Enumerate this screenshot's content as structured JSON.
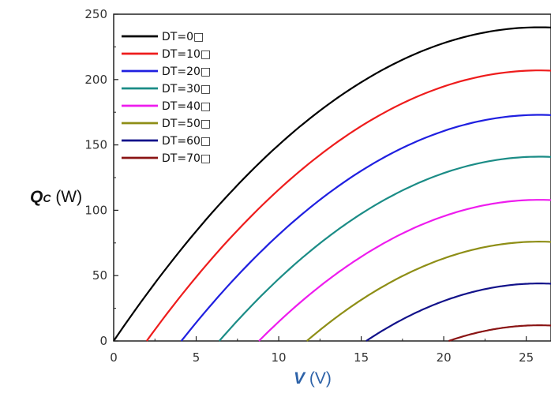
{
  "y_label": {
    "symbol": "Q",
    "subscript": "C",
    "unit": "(W)"
  },
  "x_label": {
    "symbol": "V",
    "unit": "(V)"
  },
  "chart_data": {
    "type": "line",
    "title": "",
    "xlabel": "V (V)",
    "ylabel": "Qc (W)",
    "xlim": [
      0,
      26.5
    ],
    "ylim": [
      0,
      250
    ],
    "xticks": [
      "0",
      "5",
      "10",
      "15",
      "20",
      "25"
    ],
    "yticks": [
      "0",
      "50",
      "100",
      "150",
      "200",
      "250"
    ],
    "grid": false,
    "legend_position": "top-left",
    "series": [
      {
        "name": "DT=0□",
        "color": "#000000",
        "v0": 0.0,
        "vmax": 25.8,
        "qmax": 240
      },
      {
        "name": "DT=10□",
        "color": "#ee1c1c",
        "v0": 2.0,
        "vmax": 25.8,
        "qmax": 207
      },
      {
        "name": "DT=20□",
        "color": "#1f1fe0",
        "v0": 4.1,
        "vmax": 25.8,
        "qmax": 173
      },
      {
        "name": "DT=30□",
        "color": "#1b8c86",
        "v0": 6.4,
        "vmax": 25.8,
        "qmax": 141
      },
      {
        "name": "DT=40□",
        "color": "#ee1cee",
        "v0": 8.8,
        "vmax": 25.8,
        "qmax": 108
      },
      {
        "name": "DT=50□",
        "color": "#8e8e16",
        "v0": 11.7,
        "vmax": 25.8,
        "qmax": 76
      },
      {
        "name": "DT=60□",
        "color": "#12128a",
        "v0": 15.3,
        "vmax": 25.8,
        "qmax": 44
      },
      {
        "name": "DT=70□",
        "color": "#8a1414",
        "v0": 20.3,
        "vmax": 25.8,
        "qmax": 12
      }
    ]
  }
}
